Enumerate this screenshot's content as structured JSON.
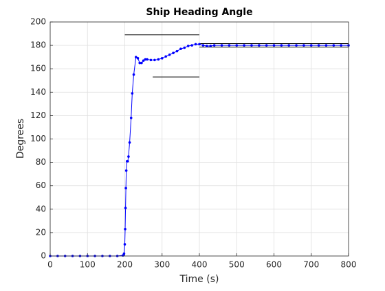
{
  "chart_data": {
    "type": "line",
    "title": "Ship Heading Angle",
    "x_label": "Time (s)",
    "y_label": "Degrees",
    "grid": true,
    "xlim": [
      0,
      800
    ],
    "ylim": [
      0,
      200
    ],
    "xticks": [
      0,
      100,
      200,
      300,
      400,
      500,
      600,
      700,
      800
    ],
    "yticks": [
      0,
      20,
      40,
      60,
      80,
      100,
      120,
      140,
      160,
      180,
      200
    ],
    "series": [
      {
        "color": "#0000ff",
        "x": [
          0,
          20,
          40,
          60,
          80,
          100,
          120,
          140,
          160,
          180,
          195,
          198,
          200,
          201,
          202,
          203,
          204,
          206,
          208,
          210,
          213,
          217,
          220,
          224,
          230,
          235,
          240,
          245,
          250,
          255,
          260,
          270,
          280,
          290,
          300,
          310,
          320,
          330,
          340,
          350,
          360,
          370,
          380,
          390,
          400,
          410,
          420,
          430,
          440,
          460,
          480,
          500,
          520,
          540,
          560,
          580,
          600,
          620,
          640,
          660,
          680,
          700,
          720,
          740,
          760,
          780,
          800
        ],
        "values": [
          0,
          0,
          0,
          0,
          0,
          0,
          0,
          0,
          0,
          0,
          0.5,
          2,
          10,
          23,
          41,
          58,
          73,
          81,
          81,
          85,
          97,
          118,
          139,
          155,
          170,
          169,
          165,
          165,
          167,
          168,
          168,
          167.5,
          167.5,
          168,
          169,
          170.5,
          172,
          173.5,
          175,
          177,
          178,
          179.5,
          180,
          181,
          181,
          180,
          179.5,
          179.5,
          180,
          180,
          180,
          180,
          180,
          180,
          180,
          180,
          180,
          180,
          180,
          180,
          180,
          180,
          180,
          180,
          180,
          180,
          180
        ]
      }
    ],
    "reference_lines": [
      {
        "x": [
          200,
          400
        ],
        "y": [
          189,
          189
        ]
      },
      {
        "x": [
          275,
          400
        ],
        "y": [
          153,
          153
        ]
      },
      {
        "x": [
          400,
          800
        ],
        "y": [
          181.5,
          181.5
        ]
      },
      {
        "x": [
          400,
          800
        ],
        "y": [
          178.5,
          178.5
        ]
      }
    ]
  }
}
